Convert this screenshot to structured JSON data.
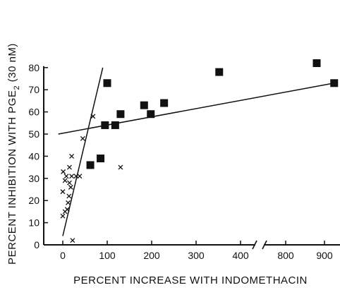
{
  "chart_data": {
    "type": "scatter",
    "xlabel": "PERCENT INCREASE WITH INDOMETHACIN",
    "ylabel_parts": [
      "PERCENT INHIBITION WITH PGE",
      "2",
      " (30 nM)"
    ],
    "ylim": [
      0,
      80
    ],
    "x_segments": [
      {
        "range": [
          0,
          400
        ],
        "ticks": [
          0,
          100,
          200,
          300,
          400
        ]
      },
      {
        "range": [
          700,
          900
        ],
        "ticks": [
          800,
          900
        ]
      }
    ],
    "y_ticks": [
      0,
      10,
      20,
      30,
      40,
      50,
      60,
      70,
      80
    ],
    "axis_break_x": true,
    "series": [
      {
        "marker": "x",
        "points": [
          [
            0,
            13
          ],
          [
            0,
            24
          ],
          [
            1,
            33
          ],
          [
            5,
            15
          ],
          [
            5,
            29
          ],
          [
            8,
            31
          ],
          [
            10,
            16
          ],
          [
            12,
            19
          ],
          [
            14,
            22
          ],
          [
            15,
            28
          ],
          [
            15,
            35
          ],
          [
            18,
            26
          ],
          [
            20,
            31
          ],
          [
            20,
            40
          ],
          [
            22,
            2
          ],
          [
            30,
            31
          ],
          [
            38,
            31
          ],
          [
            45,
            48
          ],
          [
            68,
            58
          ],
          [
            130,
            35
          ]
        ]
      },
      {
        "marker": "square",
        "points": [
          [
            62,
            36
          ],
          [
            85,
            39
          ],
          [
            95,
            54
          ],
          [
            100,
            73
          ],
          [
            118,
            54
          ],
          [
            130,
            59
          ],
          [
            183,
            63
          ],
          [
            198,
            59
          ],
          [
            228,
            64
          ],
          [
            352,
            78
          ],
          [
            880,
            82
          ],
          [
            925,
            73
          ]
        ]
      }
    ],
    "fit_lines": [
      {
        "from": [
          -10,
          50
        ],
        "to": [
          925,
          73
        ]
      },
      {
        "from": [
          0,
          4
        ],
        "to": [
          90,
          80
        ]
      }
    ],
    "colors": {
      "ink": "#111111",
      "background": "#ffffff"
    }
  }
}
